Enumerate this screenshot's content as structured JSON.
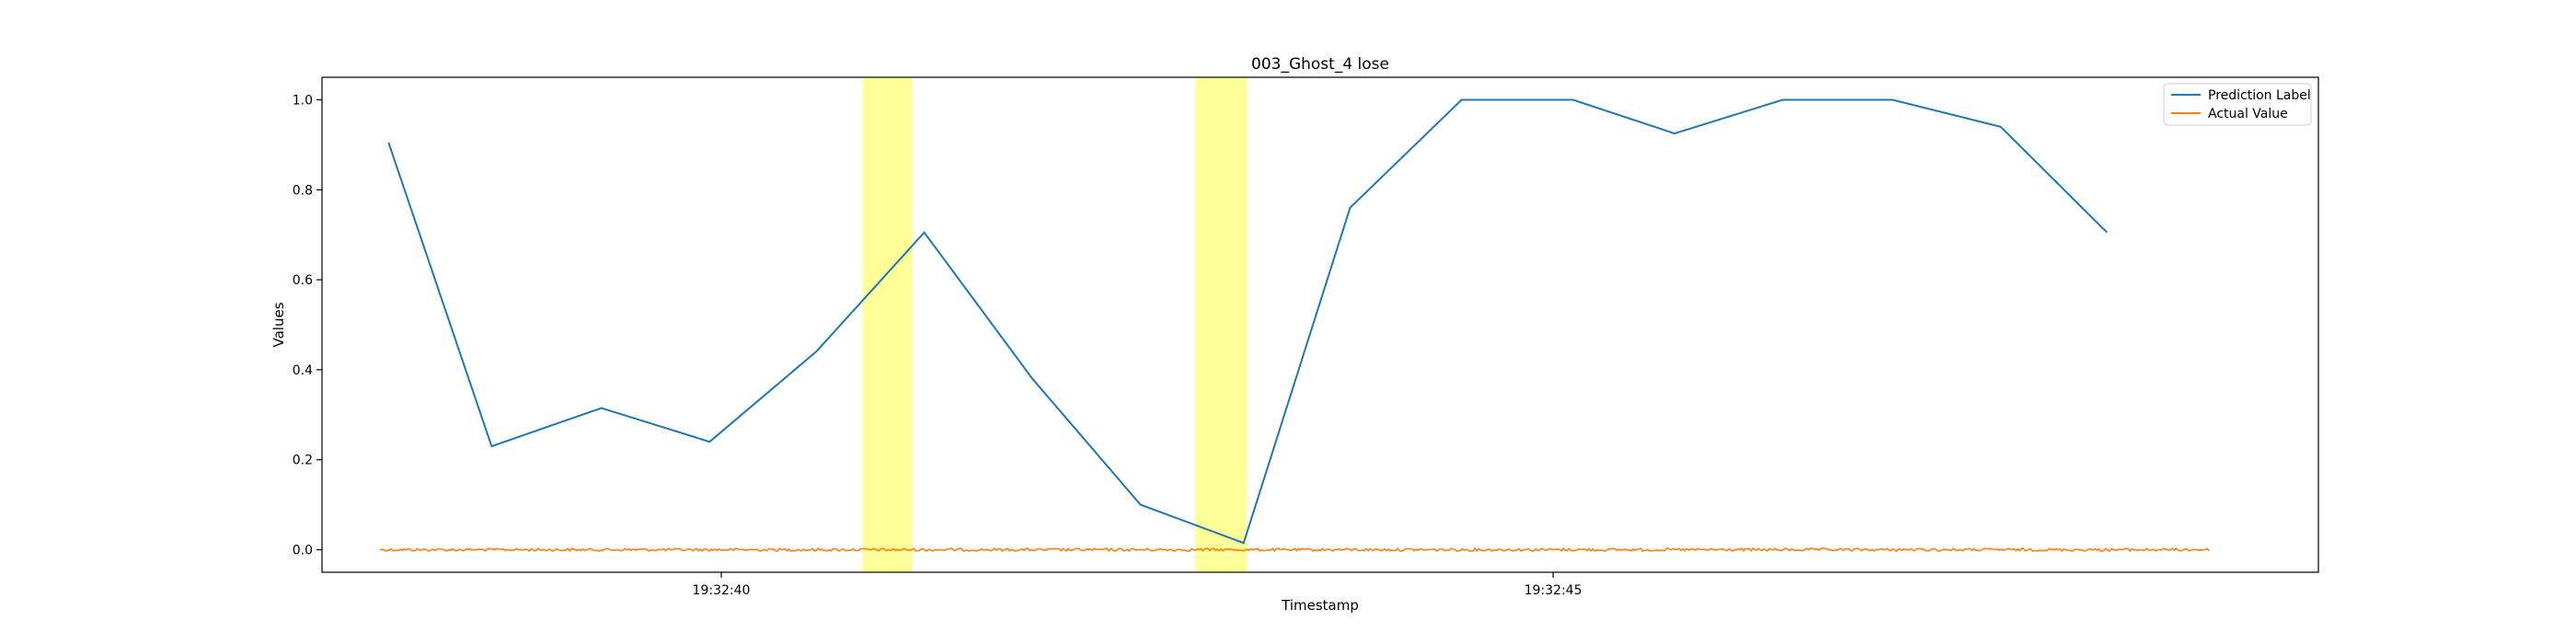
{
  "chart_data": {
    "type": "line",
    "title": "003_Ghost_4 lose",
    "xlabel": "Timestamp",
    "ylabel": "Values",
    "xlim": [
      37.6,
      49.6
    ],
    "ylim": [
      -0.05,
      1.05
    ],
    "x_ticks": [
      {
        "value": 40,
        "label": "19:32:40"
      },
      {
        "value": 45,
        "label": "19:32:45"
      }
    ],
    "y_ticks": [
      {
        "value": 0.0,
        "label": "0.0"
      },
      {
        "value": 0.2,
        "label": "0.2"
      },
      {
        "value": 0.4,
        "label": "0.4"
      },
      {
        "value": 0.6,
        "label": "0.6"
      },
      {
        "value": 0.8,
        "label": "0.8"
      },
      {
        "value": 1.0,
        "label": "1.0"
      }
    ],
    "legend_position": "top-right",
    "series": [
      {
        "name": "Prediction Label",
        "color": "#1f77b4",
        "x": [
          38.0,
          38.62,
          39.28,
          39.93,
          40.57,
          41.22,
          41.87,
          42.52,
          43.14,
          43.78,
          44.45,
          45.12,
          45.73,
          46.38,
          47.04,
          47.69,
          48.33
        ],
        "y": [
          0.905,
          0.23,
          0.315,
          0.24,
          0.44,
          0.705,
          0.38,
          0.1,
          0.015,
          0.76,
          1.0,
          1.0,
          0.925,
          1.0,
          1.0,
          0.94,
          0.705
        ]
      },
      {
        "name": "Actual Value",
        "color": "#ff7f0e",
        "x_range": [
          37.95,
          48.95
        ],
        "y_value": 0.0
      }
    ],
    "highlight_regions": [
      {
        "x": [
          40.85,
          41.15
        ],
        "color": "#ffff99"
      },
      {
        "x": [
          42.85,
          43.16
        ],
        "color": "#ffff99"
      }
    ]
  }
}
